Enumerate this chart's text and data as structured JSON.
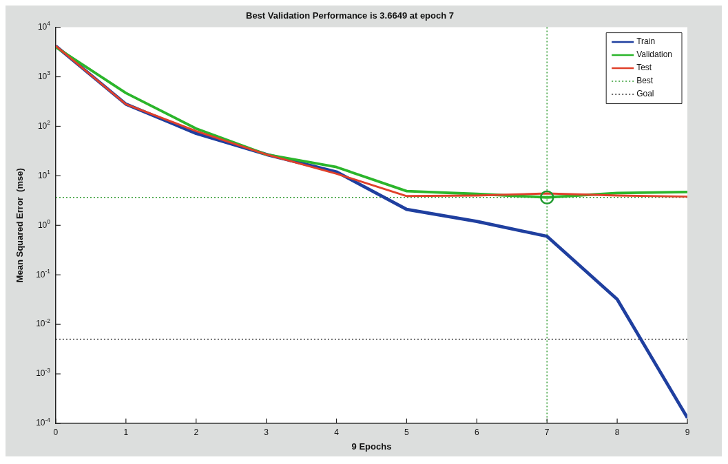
{
  "chart_data": {
    "type": "line",
    "title": "Best Validation Performance is 3.6649 at epoch 7",
    "xlabel": "9 Epochs",
    "ylabel": "Mean Squared Error  (mse)",
    "x": [
      0,
      1,
      2,
      3,
      4,
      5,
      6,
      7,
      8,
      9
    ],
    "series": [
      {
        "name": "Train",
        "color": "#1f3f9f",
        "values": [
          4200,
          280,
          72,
          27,
          12,
          2.1,
          1.2,
          0.6,
          0.032,
          0.00013
        ]
      },
      {
        "name": "Validation",
        "color": "#2bb52b",
        "values": [
          4000,
          470,
          90,
          27,
          15,
          4.9,
          4.3,
          3.6649,
          4.5,
          4.7
        ]
      },
      {
        "name": "Test",
        "color": "#e0402a",
        "values": [
          4200,
          280,
          80,
          27,
          11,
          3.9,
          4.0,
          4.4,
          4.0,
          3.8
        ]
      },
      {
        "type": "scatter",
        "marker": "circle",
        "color": "#1f9a2e",
        "x": [
          7
        ],
        "values": [
          3.6649
        ]
      }
    ],
    "xlim": [
      0,
      9
    ],
    "xticks": [
      0,
      1,
      2,
      3,
      4,
      5,
      6,
      7,
      8,
      9
    ],
    "ylim": [
      0.0001,
      10000
    ],
    "yticks": [
      {
        "value": 0.0001,
        "label": "10$^{-4}$"
      },
      {
        "value": 0.001,
        "label": "10$^{-3}$"
      },
      {
        "value": 0.01,
        "label": "10$^{-2}$"
      },
      {
        "value": 0.1,
        "label": "10$^{-1}$"
      },
      {
        "value": 1,
        "label": "10$^{0}$"
      },
      {
        "value": 10,
        "label": "10$^{1}$"
      },
      {
        "value": 100,
        "label": "10$^{2}$"
      },
      {
        "value": 1000,
        "label": "10$^{3}$"
      },
      {
        "value": 10000,
        "label": "10$^{4}$"
      }
    ],
    "log": true,
    "legend": "top right",
    "line_style": "solid",
    "ref_lines": [
      {
        "axis": "y",
        "value": 3.6649,
        "label": "Best",
        "color": "#2e9a2e",
        "line_style": "dotted"
      },
      {
        "axis": "x",
        "value": 7,
        "label": null,
        "color": "#2e9a2e",
        "line_style": "dotted"
      },
      {
        "axis": "y",
        "value": 0.005,
        "label": "Goal",
        "color": "#333333",
        "line_style": "dotted"
      }
    ]
  }
}
